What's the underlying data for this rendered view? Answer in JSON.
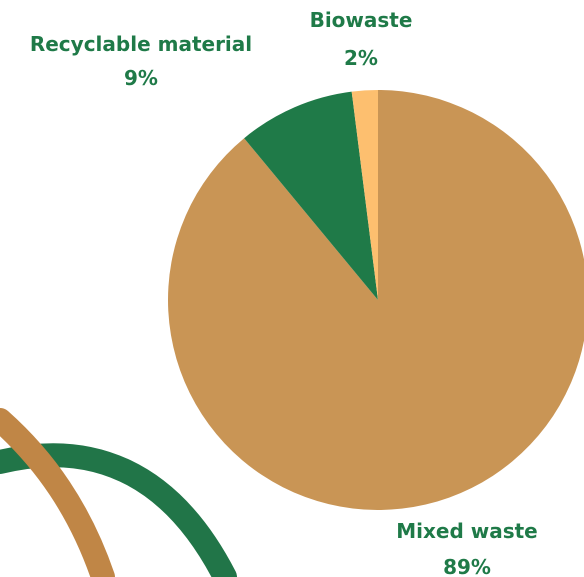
{
  "colors": {
    "mixed": "#c99555",
    "recyclable": "#1f7a48",
    "biowaste": "#fdbf6f",
    "label_text": "#1f7a48",
    "arc_green": "#217548",
    "arc_brown": "#c08646"
  },
  "chart_data": {
    "type": "pie",
    "slices": [
      {
        "name": "Mixed waste",
        "value": 89,
        "label": "89%",
        "color": "#c99555"
      },
      {
        "name": "Recyclable material",
        "value": 9,
        "label": "9%",
        "color": "#1f7a48"
      },
      {
        "name": "Biowaste",
        "value": 2,
        "label": "2%",
        "color": "#fdbf6f"
      }
    ],
    "start_angle_deg": 0,
    "direction": "clockwise",
    "legend": "none"
  }
}
